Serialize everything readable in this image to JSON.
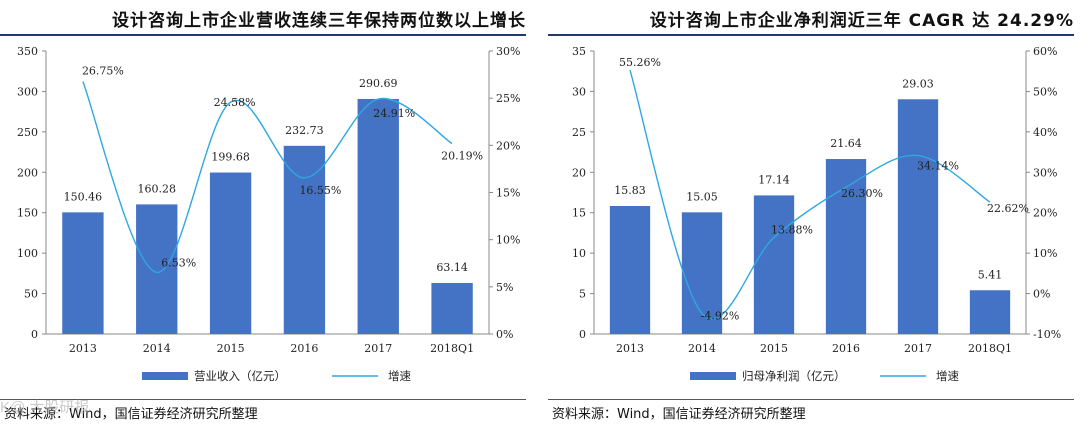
{
  "panels": [
    {
      "title": "设计咨询上市企业营收连续三年保持两位数以上增长",
      "source": "资料来源：Wind，国信证券经济研究所整理"
    },
    {
      "title": "设计咨询上市企业净利润近三年 CAGR 达 24.29%",
      "source": "资料来源：Wind，国信证券经济研究所整理"
    }
  ],
  "watermark": "K@ 大股研报",
  "colors": {
    "bar": "#4472c4",
    "line": "#2fa8e0",
    "rule": "#1f3a6b"
  },
  "chart_data": [
    {
      "type": "bar",
      "categories": [
        "2013",
        "2014",
        "2015",
        "2016",
        "2017",
        "2018Q1"
      ],
      "series": [
        {
          "name": "营业收入（亿元）",
          "kind": "bar",
          "axis": "left",
          "values": [
            150.46,
            160.28,
            199.68,
            232.73,
            290.69,
            63.14
          ],
          "labels": [
            "150.46",
            "160.28",
            "199.68",
            "232.73",
            "290.69",
            "63.14"
          ]
        },
        {
          "name": "增速",
          "kind": "line",
          "axis": "right",
          "values": [
            26.75,
            6.53,
            24.58,
            16.55,
            24.91,
            20.19
          ],
          "labels": [
            "26.75%",
            "6.53%",
            "24.58%",
            "16.55%",
            "24.91%",
            "20.19%"
          ]
        }
      ],
      "ylim_left": [
        0,
        350
      ],
      "yticks_left": [
        "0",
        "50",
        "100",
        "150",
        "200",
        "250",
        "300",
        "350"
      ],
      "ylim_right": [
        0,
        30
      ],
      "yticks_right": [
        "0%",
        "5%",
        "10%",
        "15%",
        "20%",
        "25%",
        "30%"
      ],
      "legend": [
        "营业收入（亿元）",
        "增速"
      ]
    },
    {
      "type": "bar",
      "categories": [
        "2013",
        "2014",
        "2015",
        "2016",
        "2017",
        "2018Q1"
      ],
      "series": [
        {
          "name": "归母净利润（亿元）",
          "kind": "bar",
          "axis": "left",
          "values": [
            15.83,
            15.05,
            17.14,
            21.64,
            29.03,
            5.41
          ],
          "labels": [
            "15.83",
            "15.05",
            "17.14",
            "21.64",
            "29.03",
            "5.41"
          ]
        },
        {
          "name": "增速",
          "kind": "line",
          "axis": "right",
          "values": [
            55.26,
            -4.92,
            13.88,
            26.3,
            34.14,
            22.62
          ],
          "labels": [
            "55.26%",
            "-4.92%",
            "13.88%",
            "26.30%",
            "34.14%",
            "22.62%"
          ]
        }
      ],
      "ylim_left": [
        0,
        35
      ],
      "yticks_left": [
        "0",
        "5",
        "10",
        "15",
        "20",
        "25",
        "30",
        "35"
      ],
      "ylim_right": [
        -10,
        60
      ],
      "yticks_right": [
        "-10%",
        "0%",
        "10%",
        "20%",
        "30%",
        "40%",
        "50%",
        "60%"
      ],
      "legend": [
        "归母净利润（亿元）",
        "增速"
      ]
    }
  ]
}
